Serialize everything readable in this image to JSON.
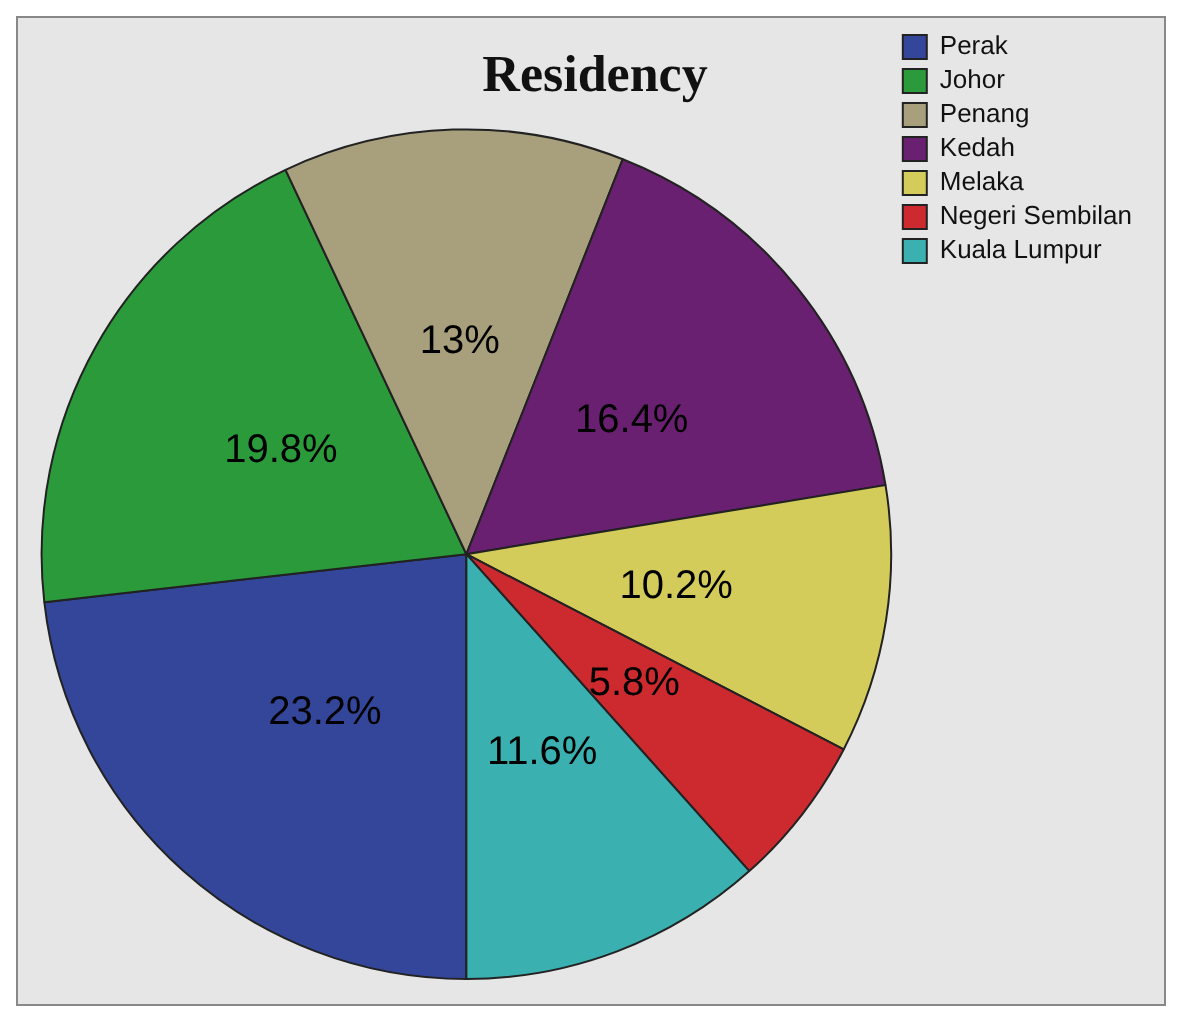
{
  "chart_data": {
    "type": "pie",
    "title": "Residency",
    "categories": [
      "Perak",
      "Johor",
      "Penang",
      "Kedah",
      "Melaka",
      "Negeri Sembilan",
      "Kuala Lumpur"
    ],
    "values": [
      23.2,
      19.8,
      13,
      16.4,
      10.2,
      5.8,
      11.6
    ],
    "value_labels": [
      "23.2%",
      "19.8%",
      "13%",
      "16.4%",
      "10.2%",
      "5.8%",
      "11.6%"
    ],
    "colors": [
      "#34469a",
      "#2a9a3a",
      "#a8a07c",
      "#6a2070",
      "#d4cc5a",
      "#cc2a2e",
      "#3ab0b0"
    ],
    "legend": "top right"
  }
}
